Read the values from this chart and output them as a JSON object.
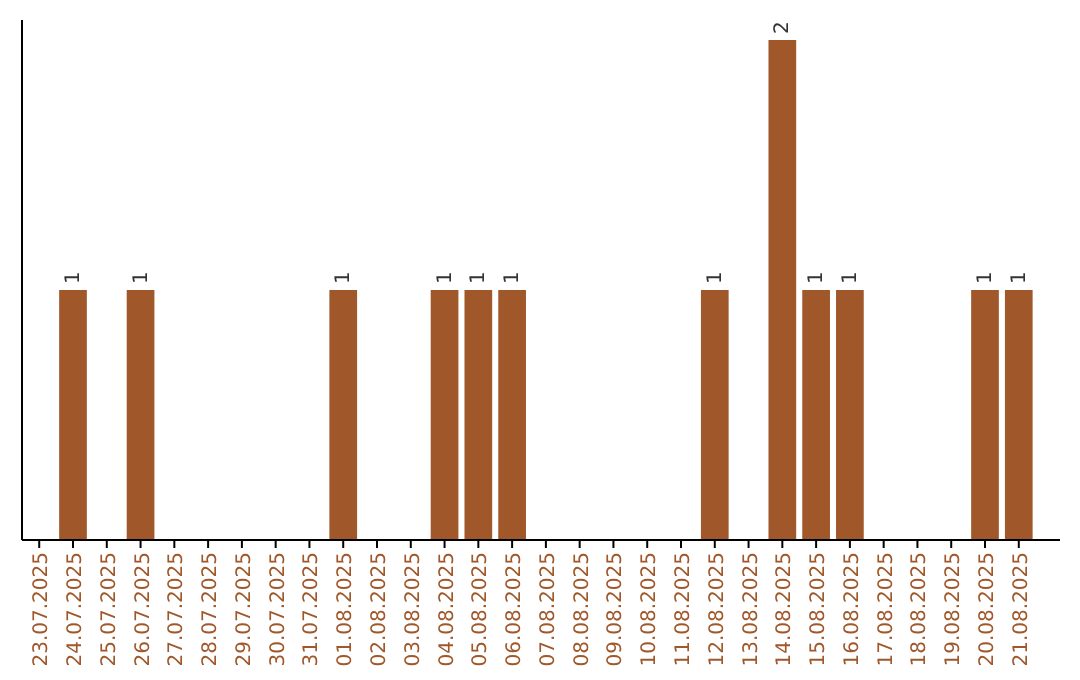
{
  "chart_data": {
    "type": "bar",
    "categories": [
      "23.07.2025",
      "24.07.2025",
      "25.07.2025",
      "26.07.2025",
      "27.07.2025",
      "28.07.2025",
      "29.07.2025",
      "30.07.2025",
      "31.07.2025",
      "01.08.2025",
      "02.08.2025",
      "03.08.2025",
      "04.08.2025",
      "05.08.2025",
      "06.08.2025",
      "07.08.2025",
      "08.08.2025",
      "09.08.2025",
      "10.08.2025",
      "11.08.2025",
      "12.08.2025",
      "13.08.2025",
      "14.08.2025",
      "15.08.2025",
      "16.08.2025",
      "17.08.2025",
      "18.08.2025",
      "19.08.2025",
      "20.08.2025",
      "21.08.2025"
    ],
    "values": [
      0,
      1,
      0,
      1,
      0,
      0,
      0,
      0,
      0,
      1,
      0,
      0,
      1,
      1,
      1,
      0,
      0,
      0,
      0,
      0,
      1,
      0,
      2,
      1,
      1,
      0,
      0,
      0,
      1,
      1
    ],
    "value_labels": [
      null,
      "1",
      null,
      "1",
      null,
      null,
      null,
      null,
      null,
      "1",
      null,
      null,
      "1",
      "1",
      "1",
      null,
      null,
      null,
      null,
      null,
      "1",
      null,
      "2",
      "1",
      "1",
      null,
      null,
      null,
      "1",
      "1"
    ],
    "color": "#a0572a",
    "relative": false
  }
}
